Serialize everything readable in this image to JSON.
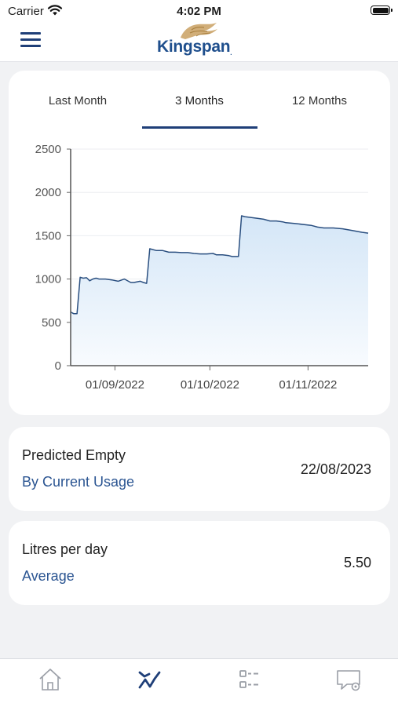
{
  "status_bar": {
    "carrier": "Carrier",
    "time": "4:02 PM"
  },
  "header": {
    "logo_text": "Kingspan",
    "logo_mark": "."
  },
  "tabs": [
    {
      "label": "Last Month",
      "selected": false
    },
    {
      "label": "3 Months",
      "selected": true
    },
    {
      "label": "12 Months",
      "selected": false
    }
  ],
  "chart_data": {
    "type": "area",
    "x_labels": [
      "01/09/2022",
      "01/10/2022",
      "01/11/2022"
    ],
    "y_ticks": [
      "0",
      "500",
      "1000",
      "1500",
      "2000",
      "2500"
    ],
    "ylim": [
      0,
      2500
    ],
    "xlim": [
      "2022-08-18",
      "2022-11-20"
    ],
    "x": [
      "2022-08-18",
      "2022-08-19",
      "2022-08-20",
      "2022-08-21",
      "2022-08-22",
      "2022-08-23",
      "2022-08-24",
      "2022-08-25",
      "2022-08-26",
      "2022-08-27",
      "2022-08-29",
      "2022-08-31",
      "2022-09-02",
      "2022-09-04",
      "2022-09-06",
      "2022-09-07",
      "2022-09-09",
      "2022-09-10",
      "2022-09-11",
      "2022-09-12",
      "2022-09-13",
      "2022-09-14",
      "2022-09-16",
      "2022-09-18",
      "2022-09-20",
      "2022-09-22",
      "2022-09-24",
      "2022-09-26",
      "2022-09-28",
      "2022-09-30",
      "2022-10-02",
      "2022-10-03",
      "2022-10-05",
      "2022-10-07",
      "2022-10-08",
      "2022-10-10",
      "2022-10-11",
      "2022-10-12",
      "2022-10-16",
      "2022-10-18",
      "2022-10-20",
      "2022-10-22",
      "2022-10-24",
      "2022-10-25",
      "2022-10-28",
      "2022-11-02",
      "2022-11-04",
      "2022-11-06",
      "2022-11-09",
      "2022-11-12",
      "2022-11-15",
      "2022-11-18",
      "2022-11-20"
    ],
    "y": [
      620,
      600,
      600,
      1020,
      1010,
      1015,
      980,
      1000,
      1010,
      1000,
      1000,
      990,
      975,
      1000,
      960,
      960,
      975,
      960,
      950,
      1350,
      1340,
      1330,
      1330,
      1310,
      1310,
      1305,
      1305,
      1295,
      1290,
      1290,
      1295,
      1280,
      1280,
      1270,
      1260,
      1260,
      1730,
      1720,
      1700,
      1690,
      1670,
      1670,
      1660,
      1650,
      1640,
      1620,
      1600,
      1590,
      1590,
      1580,
      1560,
      1540,
      1530
    ],
    "line_color": "#2a4f80",
    "fill_top": "#d4e6f7",
    "fill_bottom": "#f8fbfe",
    "grid": true
  },
  "predicted_empty": {
    "label": "Predicted Empty",
    "sublabel": "By Current Usage",
    "value": "22/08/2023"
  },
  "litres_per_day": {
    "label": "Litres per day",
    "sublabel": "Average",
    "value": "5.50"
  },
  "bottom_nav": [
    {
      "name": "home",
      "icon": "home-icon",
      "active": false
    },
    {
      "name": "usage",
      "icon": "trend-chart-icon",
      "active": true
    },
    {
      "name": "list",
      "icon": "list-icon",
      "active": false
    },
    {
      "name": "support",
      "icon": "chat-settings-icon",
      "active": false
    }
  ],
  "colors": {
    "accent": "#1f3f78",
    "link": "#2b5592",
    "inactive_icon": "#9a9ea6"
  }
}
